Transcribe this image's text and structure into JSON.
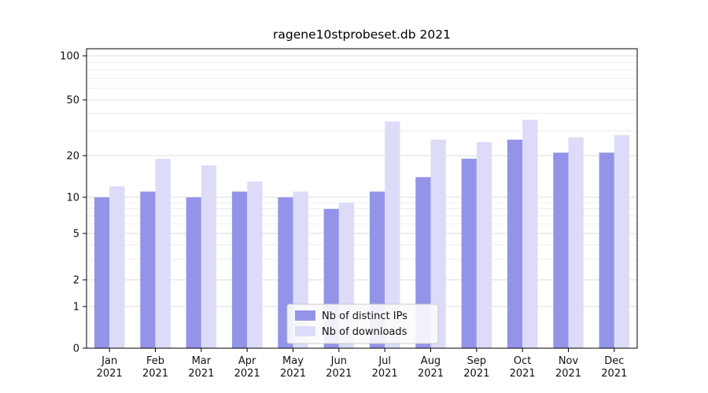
{
  "title": "ragene10stprobeset.db 2021",
  "chart_data": {
    "type": "bar",
    "title": "ragene10stprobeset.db 2021",
    "categories": [
      "Jan",
      "Feb",
      "Mar",
      "Apr",
      "May",
      "Jun",
      "Jul",
      "Aug",
      "Sep",
      "Oct",
      "Nov",
      "Dec"
    ],
    "year": "2021",
    "series": [
      {
        "name": "Nb of distinct IPs",
        "color": "#9394e8",
        "values": [
          10,
          11,
          10,
          11,
          10,
          8,
          11,
          14,
          19,
          26,
          21,
          21
        ]
      },
      {
        "name": "Nb of downloads",
        "color": "#dcdcf9",
        "values": [
          12,
          19,
          17,
          13,
          11,
          9,
          35,
          26,
          25,
          36,
          27,
          28
        ]
      }
    ],
    "xlabel": "",
    "ylabel": "",
    "yscale": "log-like (linear below 1)",
    "ylim": [
      0,
      100
    ],
    "y_ticks": [
      0,
      1,
      2,
      5,
      10,
      20,
      50,
      100
    ],
    "minor_gridlines": [
      3,
      4,
      6,
      7,
      8,
      9,
      30,
      40,
      60,
      70,
      80,
      90
    ],
    "grid": true,
    "legend_position": "lower center"
  },
  "colors": {
    "bar_distinct_ips": "#9394e8",
    "bar_downloads": "#dcdcf9",
    "grid_major": "#dedede",
    "grid_minor": "#ececec",
    "axis": "#000000",
    "legend_border": "#cccccc",
    "legend_bg": "#fbfbfb"
  }
}
